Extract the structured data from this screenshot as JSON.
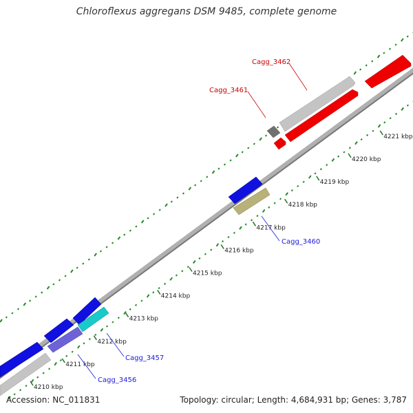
{
  "title": "Chloroflexus aggregans DSM 9485, complete genome",
  "footer": {
    "accession": "Accession: NC_011831",
    "stats": "Topology: circular; Length: 4,684,931 bp; Genes: 3,787"
  },
  "colors": {
    "plus_strand": "#0000dd",
    "minus_strand": "#0000dd",
    "rna_red": "#ee0000",
    "label_red": "#cc0000",
    "label_blue": "#1a1adb",
    "gc_dots": "#228b22",
    "backbone": "#888888"
  },
  "ticks": [
    {
      "label": "4210 kbp"
    },
    {
      "label": "4211 kbp"
    },
    {
      "label": "4212 kbp"
    },
    {
      "label": "4213 kbp"
    },
    {
      "label": "4214 kbp"
    },
    {
      "label": "4215 kbp"
    },
    {
      "label": "4216 kbp"
    },
    {
      "label": "4217 kbp"
    },
    {
      "label": "4218 kbp"
    },
    {
      "label": "4219 kbp"
    },
    {
      "label": "4220 kbp"
    },
    {
      "label": "4221 kbp"
    }
  ],
  "gene_labels": [
    {
      "id": "Cagg_3462",
      "text": "Cagg_3462",
      "color": "red"
    },
    {
      "id": "Cagg_3461",
      "text": "Cagg_3461",
      "color": "red"
    },
    {
      "id": "Cagg_3460",
      "text": "Cagg_3460",
      "color": "blue"
    },
    {
      "id": "Cagg_3457",
      "text": "Cagg_3457",
      "color": "blue"
    },
    {
      "id": "Cagg_3456",
      "text": "Cagg_3456",
      "color": "blue"
    }
  ]
}
